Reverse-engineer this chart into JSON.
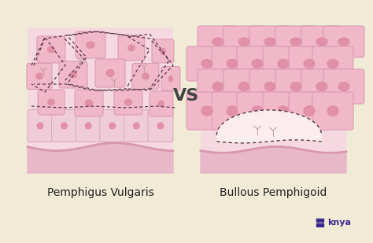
{
  "bg_color": "#f0ead6",
  "panel_bg": "#f5d8e0",
  "cell_color_upper": "#f0b8c8",
  "cell_edge_upper": "#d898b0",
  "cell_color_lower": "#f0ccd8",
  "cell_edge_lower": "#d8a8bc",
  "nucleus_color": "#e090a8",
  "dermis_color": "#e8b8c8",
  "dermis_top_color": "#d898b0",
  "gap_color": "#f5e8e8",
  "blister_color": "#fdf0f0",
  "dashed_color": "#5a3a4a",
  "vs_color": "#444444",
  "label_color": "#222222",
  "knya_color": "#3d2b8e",
  "label_left": "Pemphigus Vulgaris",
  "label_right": "Bullous Pemphigoid",
  "vs_text": "VS"
}
